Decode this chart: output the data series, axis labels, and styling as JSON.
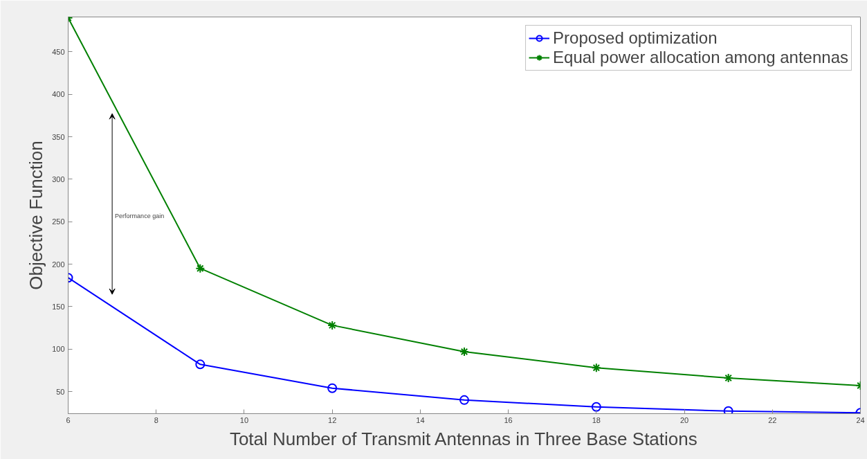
{
  "chart_data": {
    "type": "line",
    "xlabel": "Total Number of Transmit Antennas in Three Base Stations",
    "ylabel": "Objective Function",
    "x": [
      6,
      9,
      12,
      15,
      18,
      21,
      24
    ],
    "series": [
      {
        "name": "Proposed optimization",
        "color": "#0000ff",
        "marker": "circle",
        "values": [
          184,
          82,
          54,
          40,
          32,
          27,
          25
        ]
      },
      {
        "name": "Equal power allocation among antennas",
        "color": "#008000",
        "marker": "cross",
        "values": [
          490,
          195,
          128,
          97,
          78,
          66,
          57
        ]
      }
    ],
    "xlim": [
      6,
      24
    ],
    "ylim": [
      24,
      491
    ],
    "xticks": [
      6,
      8,
      10,
      12,
      14,
      16,
      18,
      20,
      22,
      24
    ],
    "yticks": [
      50,
      100,
      150,
      200,
      250,
      300,
      350,
      400,
      450
    ],
    "grid": false,
    "legend": "top right",
    "line_style": "solid",
    "annotations": [
      "Performance gain"
    ]
  }
}
